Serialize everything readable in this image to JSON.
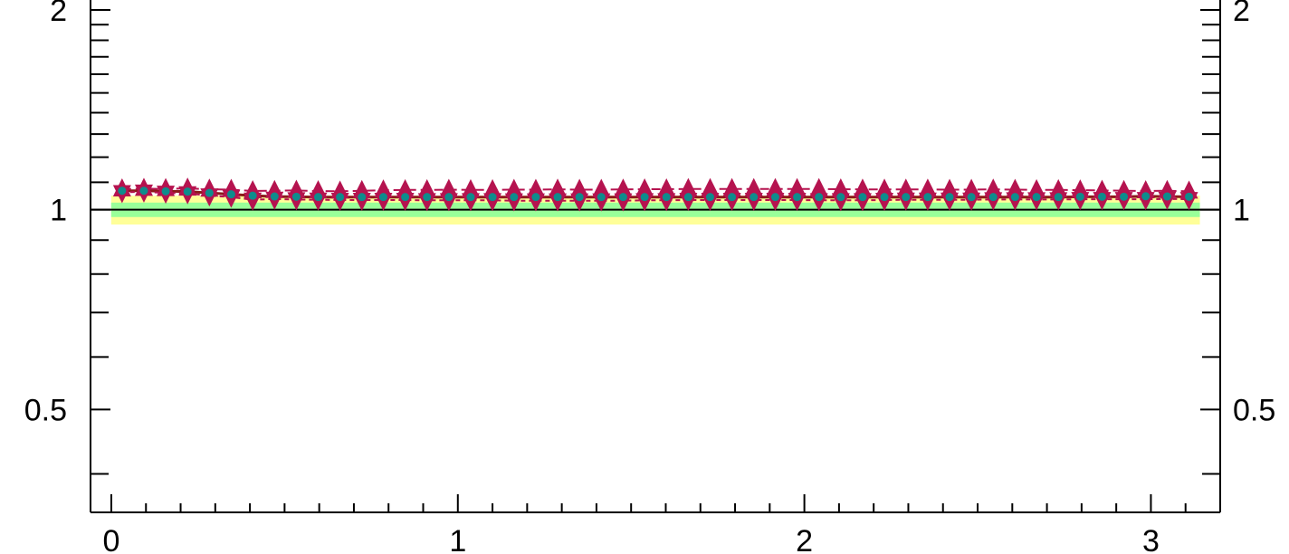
{
  "chart_data": {
    "type": "scatter",
    "title": "",
    "xlabel": "",
    "ylabel": "",
    "xlim": [
      -0.06,
      3.2
    ],
    "ylim": [
      0.35,
      2.07
    ],
    "y_scale": "log",
    "grid": false,
    "legend": "none",
    "x_ticks": [
      {
        "value": 0,
        "label": "0"
      },
      {
        "value": 1,
        "label": "1"
      },
      {
        "value": 2,
        "label": "2"
      },
      {
        "value": 3,
        "label": "3"
      }
    ],
    "y_ticks": [
      {
        "value": 0.5,
        "label": "0.5"
      },
      {
        "value": 1,
        "label": "1"
      },
      {
        "value": 2,
        "label": "2"
      }
    ],
    "reference_line": 1,
    "bands": [
      {
        "lower": 0.95,
        "upper": 1.05,
        "color": "#ffff99"
      },
      {
        "lower": 0.975,
        "upper": 1.025,
        "color": "#99ff99"
      }
    ],
    "x": [
      0.031,
      0.094,
      0.157,
      0.22,
      0.283,
      0.346,
      0.408,
      0.471,
      0.534,
      0.597,
      0.66,
      0.723,
      0.785,
      0.848,
      0.911,
      0.974,
      1.037,
      1.1,
      1.162,
      1.225,
      1.288,
      1.351,
      1.414,
      1.477,
      1.539,
      1.602,
      1.665,
      1.728,
      1.791,
      1.854,
      1.916,
      1.979,
      2.042,
      2.105,
      2.168,
      2.231,
      2.293,
      2.356,
      2.419,
      2.482,
      2.545,
      2.608,
      2.67,
      2.733,
      2.796,
      2.859,
      2.922,
      2.985,
      3.047,
      3.11
    ],
    "series": [
      {
        "color": "#0e8c8c",
        "marker": "circle",
        "values": [
          1.068,
          1.068,
          1.066,
          1.065,
          1.06,
          1.055,
          1.05,
          1.047,
          1.046,
          1.045,
          1.045,
          1.045,
          1.045,
          1.045,
          1.045,
          1.045,
          1.045,
          1.045,
          1.045,
          1.045,
          1.045,
          1.045,
          1.045,
          1.045,
          1.045,
          1.045,
          1.045,
          1.045,
          1.045,
          1.045,
          1.045,
          1.045,
          1.045,
          1.045,
          1.045,
          1.045,
          1.045,
          1.045,
          1.045,
          1.045,
          1.045,
          1.045,
          1.045,
          1.045,
          1.046,
          1.046,
          1.046,
          1.048,
          1.047,
          1.046
        ]
      },
      {
        "color": "#b5134f",
        "marker": "triangle-up",
        "values": [
          1.074,
          1.076,
          1.075,
          1.077,
          1.073,
          1.072,
          1.067,
          1.068,
          1.069,
          1.067,
          1.066,
          1.068,
          1.07,
          1.071,
          1.071,
          1.072,
          1.071,
          1.071,
          1.072,
          1.072,
          1.073,
          1.072,
          1.072,
          1.073,
          1.074,
          1.074,
          1.075,
          1.075,
          1.075,
          1.075,
          1.075,
          1.075,
          1.075,
          1.074,
          1.073,
          1.073,
          1.073,
          1.073,
          1.072,
          1.072,
          1.073,
          1.072,
          1.071,
          1.071,
          1.07,
          1.069,
          1.068,
          1.067,
          1.068,
          1.066
        ]
      },
      {
        "color": "#b5134f",
        "marker": "triangle-down",
        "values": [
          1.062,
          1.064,
          1.06,
          1.058,
          1.05,
          1.045,
          1.035,
          1.038,
          1.036,
          1.035,
          1.034,
          1.034,
          1.034,
          1.034,
          1.033,
          1.033,
          1.033,
          1.033,
          1.032,
          1.032,
          1.032,
          1.032,
          1.032,
          1.032,
          1.033,
          1.033,
          1.034,
          1.034,
          1.034,
          1.034,
          1.034,
          1.034,
          1.033,
          1.033,
          1.033,
          1.034,
          1.035,
          1.035,
          1.035,
          1.035,
          1.036,
          1.036,
          1.036,
          1.036,
          1.037,
          1.037,
          1.037,
          1.037,
          1.038,
          1.037
        ]
      }
    ]
  }
}
